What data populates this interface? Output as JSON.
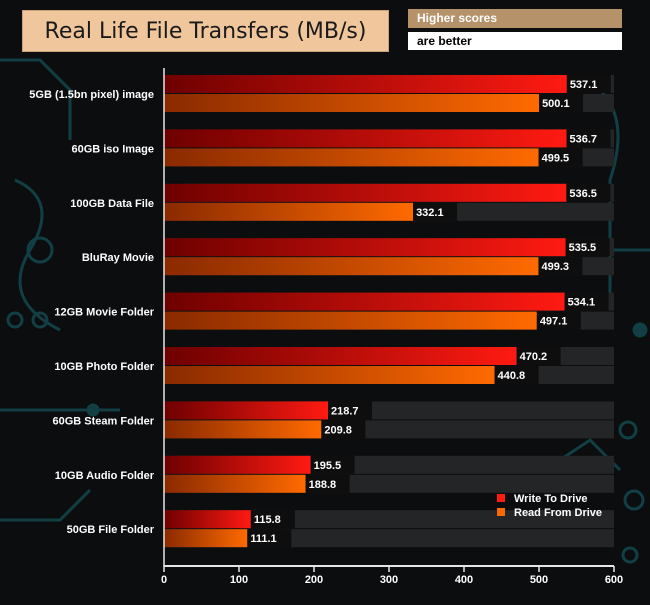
{
  "title": "Real Life File Transfers (MB/s)",
  "note": {
    "line1": "Higher scores",
    "line2": "are better"
  },
  "colors": {
    "write_start": "#6e0000",
    "write_end": "#ff1a12",
    "read_start": "#8a2a00",
    "read_end": "#ff6a00",
    "track": "#232526",
    "background": "#0b0d0e",
    "decor": "#123f44"
  },
  "chart_data": {
    "type": "bar",
    "orientation": "horizontal",
    "title": "Real Life File Transfers (MB/s)",
    "xlabel": "",
    "ylabel": "",
    "xlim": [
      0,
      600
    ],
    "xticks": [
      0,
      100,
      200,
      300,
      400,
      500,
      600
    ],
    "grid": false,
    "legend_position": "bottom-right",
    "categories": [
      "5GB (1.5bn pixel) image",
      "60GB iso Image",
      "100GB Data File",
      "BluRay Movie",
      "12GB Movie Folder",
      "10GB Photo Folder",
      "60GB Steam Folder",
      "10GB Audio Folder",
      "50GB File Folder"
    ],
    "series": [
      {
        "name": "Write To  Drive",
        "values": [
          537.1,
          536.7,
          536.5,
          535.5,
          534.1,
          470.2,
          218.7,
          195.5,
          115.8
        ]
      },
      {
        "name": "Read From  Drive",
        "values": [
          500.1,
          499.5,
          332.1,
          499.3,
          497.1,
          440.8,
          209.8,
          188.8,
          111.1
        ]
      }
    ]
  }
}
